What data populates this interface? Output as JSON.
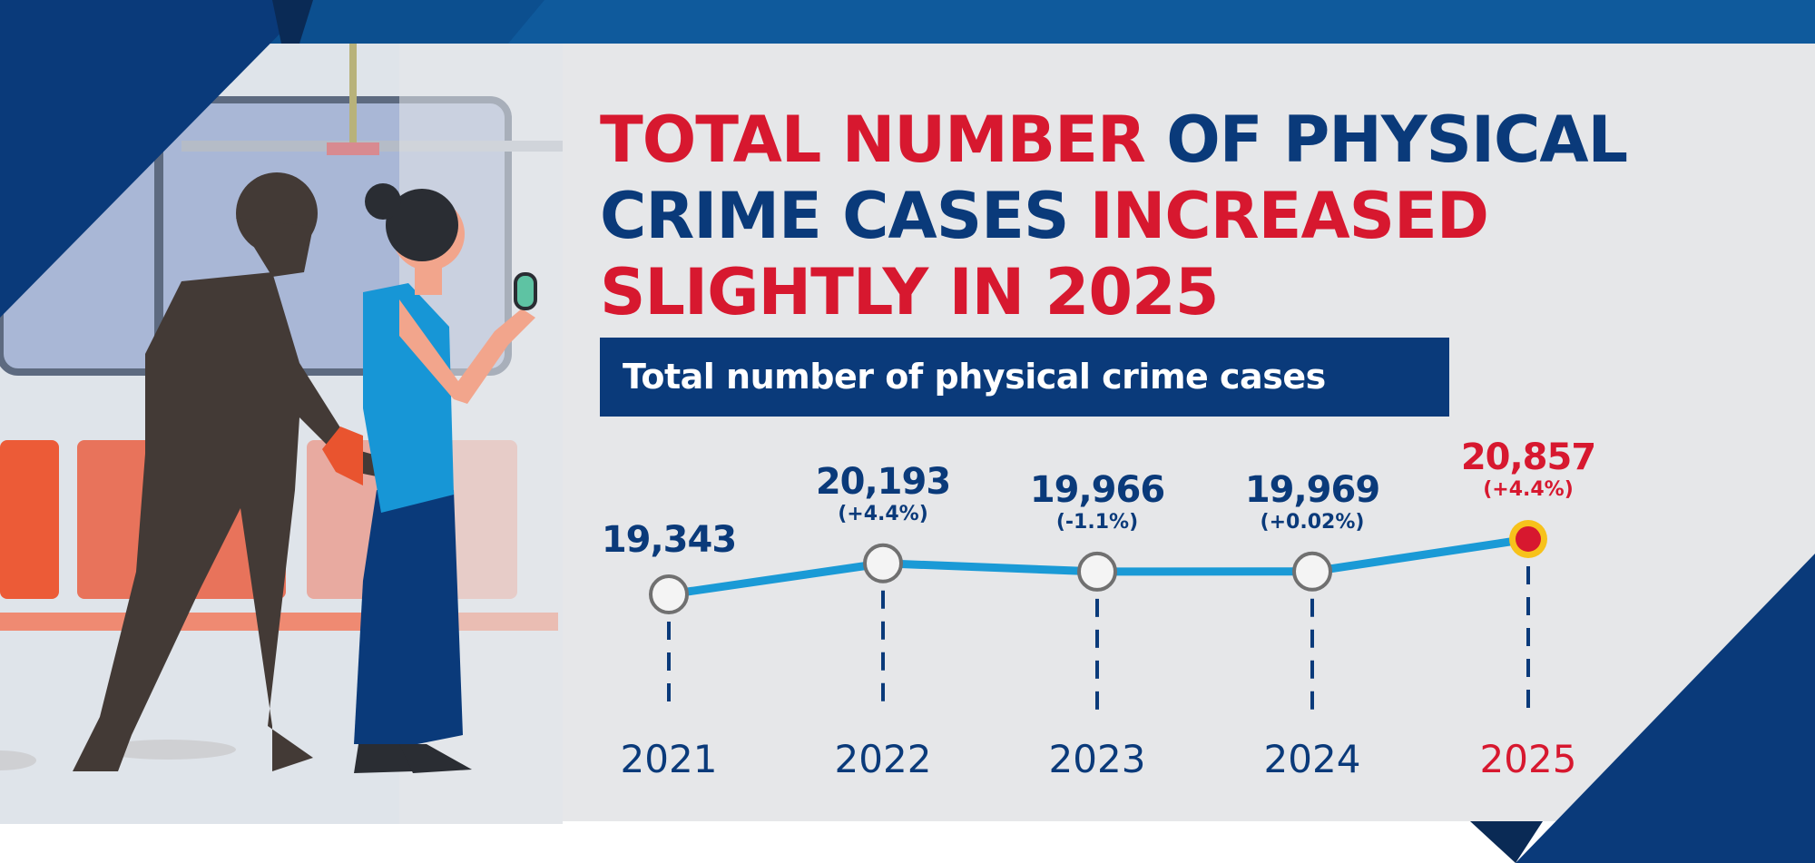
{
  "headline": {
    "part1": "TOTAL NUMBER",
    "part2": "OF PHYSICAL",
    "part3": "CRIME CASES",
    "part4": "INCREASED",
    "part5": "SLIGHTLY IN 2025"
  },
  "colors": {
    "navy": "#0a3a7a",
    "red": "#d7182f",
    "line": "#1a9ad6",
    "background": "#e6e7e9"
  },
  "chart_data": {
    "type": "line",
    "title": "Total number of physical crime cases",
    "categories": [
      "2021",
      "2022",
      "2023",
      "2024",
      "2025"
    ],
    "values": [
      19343,
      20193,
      19966,
      19969,
      20857
    ],
    "value_labels": [
      "19,343",
      "20,193",
      "19,966",
      "19,969",
      "20,857"
    ],
    "change_labels": [
      "",
      "(+4.4%)",
      "(-1.1%)",
      "(+0.02%)",
      "(+4.4%)"
    ],
    "highlight": "2025",
    "grid": false
  }
}
